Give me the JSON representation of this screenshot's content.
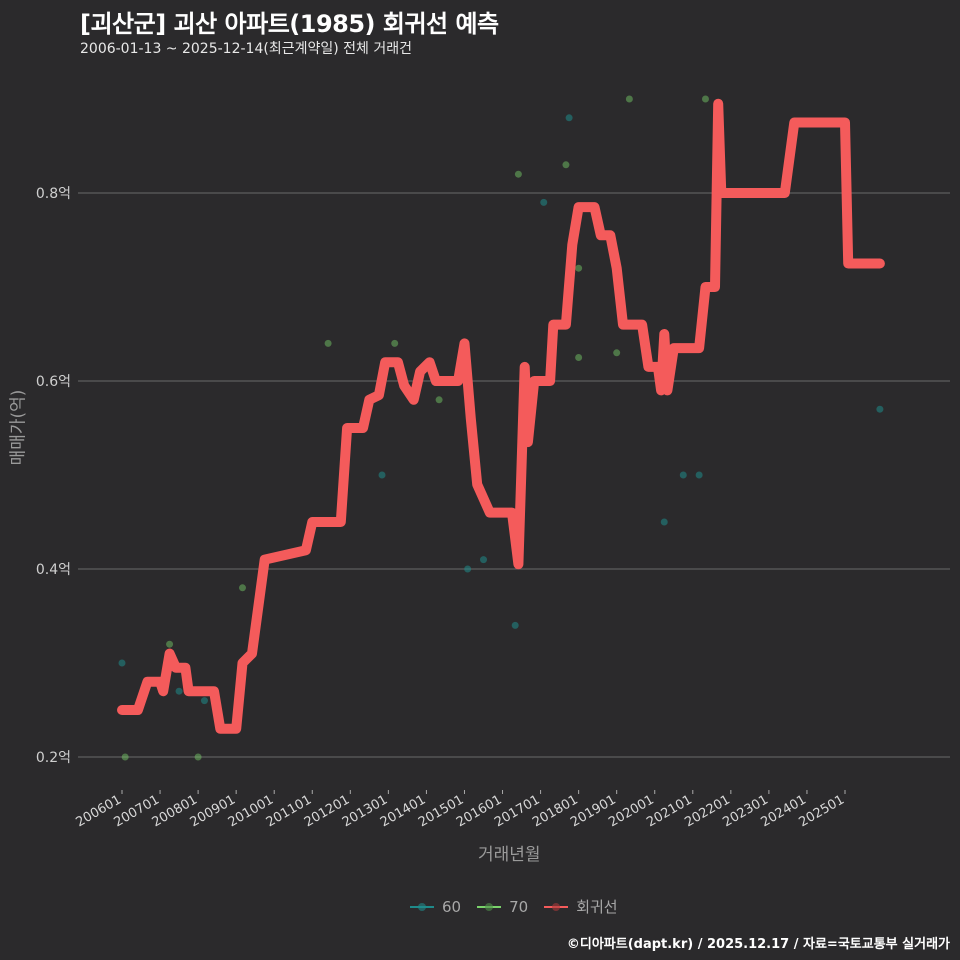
{
  "header": {
    "title": "[괴산군] 괴산 아파트(1985) 회귀선 예측",
    "subtitle": "2006-01-13 ~ 2025-12-14(최근계약일) 전체 거래건"
  },
  "axes": {
    "ylabel": "매매가(억)",
    "xlabel": "거래년월"
  },
  "legend": {
    "items": [
      {
        "label": "60",
        "color": "#1f8a8a"
      },
      {
        "label": "70",
        "color": "#7ad36b"
      },
      {
        "label": "회귀선",
        "color": "#f45b5b"
      }
    ]
  },
  "footer": {
    "credit": "©디아파트(dapt.kr) / 2025.12.17 / 자료=국토교통부 실거래가"
  },
  "colors": {
    "background": "#2b2a2c",
    "grid": "#6a6a6a",
    "regression": "#f45b5b",
    "series60": "#1f8a8a",
    "series70": "#7ad36b"
  },
  "chart_data": {
    "type": "scatter",
    "title": "[괴산군] 괴산 아파트(1985) 회귀선 예측",
    "subtitle": "2006-01-13 ~ 2025-12-14(최근계약일) 전체 거래건",
    "xlabel": "거래년월",
    "ylabel": "매매가(억)",
    "x_ticks": [
      "200601",
      "200701",
      "200801",
      "200901",
      "201001",
      "201101",
      "201201",
      "201301",
      "201401",
      "201501",
      "201601",
      "201701",
      "201801",
      "201901",
      "202001",
      "202101",
      "202201",
      "202301",
      "202401",
      "202501"
    ],
    "y_ticks": [
      "0.2억",
      "0.4억",
      "0.6억",
      "0.8억"
    ],
    "ylim": [
      0.17,
      0.93
    ],
    "grid": true,
    "legend_position": "bottom",
    "series": [
      {
        "name": "60",
        "type": "scatter",
        "points": [
          {
            "x": "2006-01",
            "y": 0.3
          },
          {
            "x": "2007-07",
            "y": 0.27
          },
          {
            "x": "2008-03",
            "y": 0.26
          },
          {
            "x": "2012-01",
            "y": 0.55
          },
          {
            "x": "2012-11",
            "y": 0.5
          },
          {
            "x": "2015-02",
            "y": 0.4
          },
          {
            "x": "2015-07",
            "y": 0.41
          },
          {
            "x": "2016-05",
            "y": 0.34
          },
          {
            "x": "2017-02",
            "y": 0.79
          },
          {
            "x": "2017-10",
            "y": 0.88
          },
          {
            "x": "2020-04",
            "y": 0.45
          },
          {
            "x": "2020-10",
            "y": 0.5
          },
          {
            "x": "2021-03",
            "y": 0.5
          },
          {
            "x": "2025-12",
            "y": 0.57
          }
        ]
      },
      {
        "name": "70",
        "type": "scatter",
        "points": [
          {
            "x": "2006-02",
            "y": 0.2
          },
          {
            "x": "2007-04",
            "y": 0.32
          },
          {
            "x": "2008-01",
            "y": 0.2
          },
          {
            "x": "2009-03",
            "y": 0.38
          },
          {
            "x": "2011-06",
            "y": 0.64
          },
          {
            "x": "2013-03",
            "y": 0.64
          },
          {
            "x": "2014-05",
            "y": 0.58
          },
          {
            "x": "2016-06",
            "y": 0.82
          },
          {
            "x": "2017-09",
            "y": 0.83
          },
          {
            "x": "2018-01",
            "y": 0.72
          },
          {
            "x": "2018-01",
            "y": 0.625
          },
          {
            "x": "2019-01",
            "y": 0.63
          },
          {
            "x": "2019-05",
            "y": 0.9
          },
          {
            "x": "2021-05",
            "y": 0.9
          }
        ]
      },
      {
        "name": "회귀선",
        "type": "line",
        "points": [
          {
            "x": "2006-01",
            "y": 0.25
          },
          {
            "x": "2006-06",
            "y": 0.25
          },
          {
            "x": "2006-09",
            "y": 0.28
          },
          {
            "x": "2007-01",
            "y": 0.28
          },
          {
            "x": "2007-02",
            "y": 0.27
          },
          {
            "x": "2007-04",
            "y": 0.31
          },
          {
            "x": "2007-06",
            "y": 0.295
          },
          {
            "x": "2007-09",
            "y": 0.295
          },
          {
            "x": "2007-10",
            "y": 0.27
          },
          {
            "x": "2008-06",
            "y": 0.27
          },
          {
            "x": "2008-08",
            "y": 0.23
          },
          {
            "x": "2009-01",
            "y": 0.23
          },
          {
            "x": "2009-03",
            "y": 0.3
          },
          {
            "x": "2009-06",
            "y": 0.31
          },
          {
            "x": "2009-10",
            "y": 0.41
          },
          {
            "x": "2010-11",
            "y": 0.42
          },
          {
            "x": "2011-01",
            "y": 0.45
          },
          {
            "x": "2011-10",
            "y": 0.45
          },
          {
            "x": "2011-12",
            "y": 0.55
          },
          {
            "x": "2012-05",
            "y": 0.55
          },
          {
            "x": "2012-07",
            "y": 0.58
          },
          {
            "x": "2012-10",
            "y": 0.585
          },
          {
            "x": "2012-12",
            "y": 0.62
          },
          {
            "x": "2013-04",
            "y": 0.62
          },
          {
            "x": "2013-06",
            "y": 0.595
          },
          {
            "x": "2013-09",
            "y": 0.58
          },
          {
            "x": "2013-11",
            "y": 0.61
          },
          {
            "x": "2014-02",
            "y": 0.62
          },
          {
            "x": "2014-04",
            "y": 0.6
          },
          {
            "x": "2014-11",
            "y": 0.6
          },
          {
            "x": "2015-01",
            "y": 0.64
          },
          {
            "x": "2015-03",
            "y": 0.56
          },
          {
            "x": "2015-05",
            "y": 0.49
          },
          {
            "x": "2015-09",
            "y": 0.46
          },
          {
            "x": "2016-04",
            "y": 0.46
          },
          {
            "x": "2016-06",
            "y": 0.405
          },
          {
            "x": "2016-08",
            "y": 0.615
          },
          {
            "x": "2016-09",
            "y": 0.535
          },
          {
            "x": "2016-11",
            "y": 0.6
          },
          {
            "x": "2017-04",
            "y": 0.6
          },
          {
            "x": "2017-05",
            "y": 0.66
          },
          {
            "x": "2017-09",
            "y": 0.66
          },
          {
            "x": "2017-11",
            "y": 0.745
          },
          {
            "x": "2018-01",
            "y": 0.785
          },
          {
            "x": "2018-06",
            "y": 0.785
          },
          {
            "x": "2018-08",
            "y": 0.755
          },
          {
            "x": "2018-11",
            "y": 0.755
          },
          {
            "x": "2019-01",
            "y": 0.72
          },
          {
            "x": "2019-03",
            "y": 0.66
          },
          {
            "x": "2019-09",
            "y": 0.66
          },
          {
            "x": "2019-11",
            "y": 0.615
          },
          {
            "x": "2020-02",
            "y": 0.615
          },
          {
            "x": "2020-03",
            "y": 0.59
          },
          {
            "x": "2020-04",
            "y": 0.65
          },
          {
            "x": "2020-05",
            "y": 0.59
          },
          {
            "x": "2020-07",
            "y": 0.635
          },
          {
            "x": "2021-03",
            "y": 0.635
          },
          {
            "x": "2021-05",
            "y": 0.7
          },
          {
            "x": "2021-08",
            "y": 0.7
          },
          {
            "x": "2021-09",
            "y": 0.895
          },
          {
            "x": "2021-10",
            "y": 0.8
          },
          {
            "x": "2023-06",
            "y": 0.8
          },
          {
            "x": "2023-09",
            "y": 0.875
          },
          {
            "x": "2025-01",
            "y": 0.875
          },
          {
            "x": "2025-02",
            "y": 0.725
          },
          {
            "x": "2025-12",
            "y": 0.725
          }
        ]
      }
    ]
  }
}
